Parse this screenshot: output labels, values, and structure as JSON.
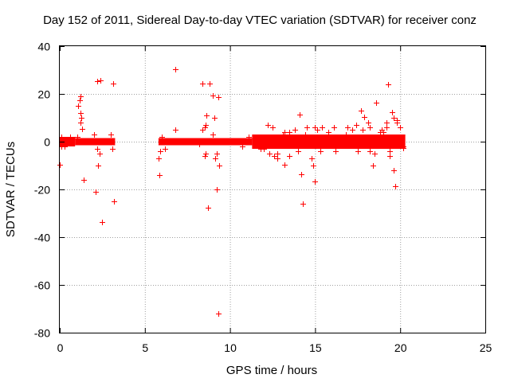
{
  "chart_data": {
    "type": "scatter",
    "title": "Day 152 of 2011, Sidereal Day-to-day VTEC variation (SDTVAR) for receiver conz",
    "xlabel": "GPS time / hours",
    "ylabel": "SDTVAR / TECUs",
    "xlim": [
      0,
      25
    ],
    "ylim": [
      -80,
      40
    ],
    "x_ticks": [
      "0",
      "5",
      "10",
      "15",
      "20",
      "25"
    ],
    "y_ticks": [
      "40",
      "20",
      "0",
      "-20",
      "-40",
      "-60",
      "-80"
    ],
    "grid": true,
    "marker": "+",
    "color": "#ff0000",
    "dense_bands": [
      {
        "x": [
          0.0,
          0.9
        ],
        "ylim": [
          -2,
          2
        ]
      },
      {
        "x": [
          0.9,
          3.25
        ],
        "ylim": [
          -1.5,
          1.5
        ]
      },
      {
        "x": [
          5.8,
          11.3
        ],
        "ylim": [
          -1.5,
          1.5
        ]
      },
      {
        "x": [
          11.3,
          20.3
        ],
        "ylim": [
          -3,
          3
        ]
      }
    ],
    "band_envelope_points": [
      [
        5.8,
        -7
      ],
      [
        5.9,
        -4
      ],
      [
        6.0,
        2
      ],
      [
        6.2,
        -3
      ],
      [
        8.4,
        5
      ],
      [
        8.5,
        -6
      ],
      [
        9.0,
        3
      ],
      [
        9.2,
        -5
      ],
      [
        11.5,
        2
      ],
      [
        11.8,
        -3
      ],
      [
        12.2,
        7
      ],
      [
        12.3,
        -5
      ],
      [
        12.5,
        6
      ],
      [
        12.8,
        -5
      ],
      [
        13.2,
        4
      ],
      [
        13.5,
        -6
      ],
      [
        13.8,
        5
      ],
      [
        14.0,
        -4
      ],
      [
        14.5,
        6
      ],
      [
        14.8,
        -7
      ],
      [
        15.0,
        6
      ],
      [
        15.3,
        -4
      ],
      [
        15.8,
        4
      ],
      [
        16.2,
        -4
      ],
      [
        16.8,
        3
      ],
      [
        17.2,
        5
      ],
      [
        17.5,
        -4
      ],
      [
        17.8,
        5
      ],
      [
        18.2,
        6
      ],
      [
        18.5,
        -5
      ],
      [
        18.8,
        4
      ],
      [
        19.2,
        6
      ],
      [
        19.4,
        -6
      ],
      [
        19.6,
        10
      ],
      [
        19.8,
        8
      ],
      [
        20.0,
        6
      ],
      [
        20.2,
        -2
      ],
      [
        0.1,
        2
      ],
      [
        0.3,
        -2
      ],
      [
        0.6,
        2
      ],
      [
        2.0,
        3
      ],
      [
        2.2,
        -3
      ],
      [
        3.0,
        3
      ],
      [
        3.1,
        -3
      ]
    ],
    "outliers": [
      [
        0.0,
        -9.5
      ],
      [
        0.1,
        -2
      ],
      [
        1.1,
        15
      ],
      [
        1.15,
        17.5
      ],
      [
        1.2,
        19
      ],
      [
        1.2,
        12
      ],
      [
        1.2,
        8
      ],
      [
        1.25,
        10
      ],
      [
        1.3,
        5.5
      ],
      [
        1.05,
        2
      ],
      [
        1.4,
        -16
      ],
      [
        2.1,
        -21
      ],
      [
        2.2,
        25.5
      ],
      [
        2.25,
        -10
      ],
      [
        2.35,
        -5
      ],
      [
        2.4,
        25.8
      ],
      [
        2.5,
        -33.5
      ],
      [
        3.15,
        24.5
      ],
      [
        3.2,
        -25
      ],
      [
        5.85,
        -14
      ],
      [
        6.8,
        30.3
      ],
      [
        6.8,
        5
      ],
      [
        8.2,
        -1
      ],
      [
        8.4,
        24.5
      ],
      [
        8.5,
        6
      ],
      [
        8.55,
        -5
      ],
      [
        8.55,
        7
      ],
      [
        8.6,
        11
      ],
      [
        8.7,
        -27.5
      ],
      [
        8.8,
        24.5
      ],
      [
        9.0,
        19.5
      ],
      [
        9.1,
        10
      ],
      [
        9.2,
        -20
      ],
      [
        9.3,
        18.7
      ],
      [
        9.3,
        -72
      ],
      [
        9.35,
        -10
      ],
      [
        9.15,
        -7
      ],
      [
        10.7,
        -2
      ],
      [
        11.1,
        2
      ],
      [
        11.8,
        -1
      ],
      [
        12.0,
        -3
      ],
      [
        12.6,
        -6
      ],
      [
        12.8,
        -7
      ],
      [
        13.1,
        3
      ],
      [
        13.2,
        -9.5
      ],
      [
        13.5,
        4
      ],
      [
        14.1,
        11.5
      ],
      [
        14.2,
        -13.5
      ],
      [
        14.3,
        -26
      ],
      [
        14.4,
        3
      ],
      [
        14.7,
        2
      ],
      [
        14.9,
        -10
      ],
      [
        15.0,
        -16.5
      ],
      [
        15.1,
        5
      ],
      [
        15.4,
        6
      ],
      [
        16.1,
        6
      ],
      [
        16.4,
        2
      ],
      [
        16.9,
        6
      ],
      [
        17.4,
        7
      ],
      [
        17.7,
        13
      ],
      [
        17.9,
        10.5
      ],
      [
        18.1,
        8
      ],
      [
        18.2,
        -4
      ],
      [
        18.4,
        -10
      ],
      [
        18.6,
        16.5
      ],
      [
        18.9,
        5
      ],
      [
        19.0,
        4
      ],
      [
        19.2,
        8
      ],
      [
        19.3,
        24
      ],
      [
        19.4,
        -4
      ],
      [
        19.5,
        12.5
      ],
      [
        19.6,
        -12
      ],
      [
        19.7,
        -18.5
      ],
      [
        19.8,
        9
      ],
      [
        20.0,
        6
      ],
      [
        20.2,
        -2.5
      ]
    ]
  }
}
